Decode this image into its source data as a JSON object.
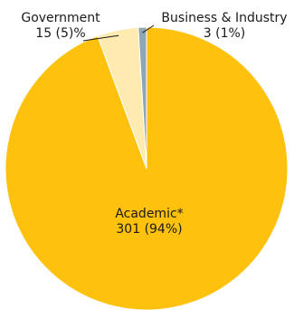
{
  "chart_data": {
    "type": "pie",
    "title": "",
    "slices": [
      {
        "name": "Academic*",
        "value": 301,
        "value_text": "301 (94%)",
        "color": "#FDC10E"
      },
      {
        "name": "Government",
        "value": 15,
        "value_text": "15 (5)%",
        "color": "#FFEBB0"
      },
      {
        "name": "Business & Industry",
        "value": 3,
        "value_text": "3 (1%)",
        "color": "#8FA6B4"
      }
    ],
    "legend": "none"
  }
}
